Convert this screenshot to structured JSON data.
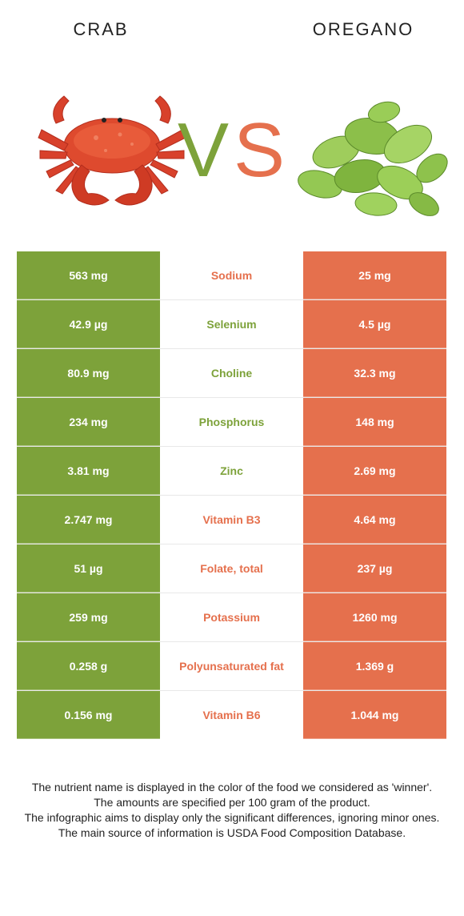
{
  "header": {
    "left_title": "CRAB",
    "right_title": "OREGANO"
  },
  "vs": {
    "v": "V",
    "s": "S"
  },
  "colors": {
    "crab": "#7da23a",
    "oregano": "#e5704d"
  },
  "rows": [
    {
      "left": "563 mg",
      "nutrient": "Sodium",
      "right": "25 mg",
      "winner": "oregano"
    },
    {
      "left": "42.9 µg",
      "nutrient": "Selenium",
      "right": "4.5 µg",
      "winner": "crab"
    },
    {
      "left": "80.9 mg",
      "nutrient": "Choline",
      "right": "32.3 mg",
      "winner": "crab"
    },
    {
      "left": "234 mg",
      "nutrient": "Phosphorus",
      "right": "148 mg",
      "winner": "crab"
    },
    {
      "left": "3.81 mg",
      "nutrient": "Zinc",
      "right": "2.69 mg",
      "winner": "crab"
    },
    {
      "left": "2.747 mg",
      "nutrient": "Vitamin B3",
      "right": "4.64 mg",
      "winner": "oregano"
    },
    {
      "left": "51 µg",
      "nutrient": "Folate, total",
      "right": "237 µg",
      "winner": "oregano"
    },
    {
      "left": "259 mg",
      "nutrient": "Potassium",
      "right": "1260 mg",
      "winner": "oregano"
    },
    {
      "left": "0.258 g",
      "nutrient": "Polyunsaturated fat",
      "right": "1.369 g",
      "winner": "oregano"
    },
    {
      "left": "0.156 mg",
      "nutrient": "Vitamin B6",
      "right": "1.044 mg",
      "winner": "oregano"
    }
  ],
  "footer": {
    "line1": "The nutrient name is displayed in the color of the food we considered as 'winner'.",
    "line2": "The amounts are specified per 100 gram of the product.",
    "line3": "The infographic aims to display only the significant differences, ignoring minor ones.",
    "line4": "The main source of information is USDA Food Composition Database."
  }
}
